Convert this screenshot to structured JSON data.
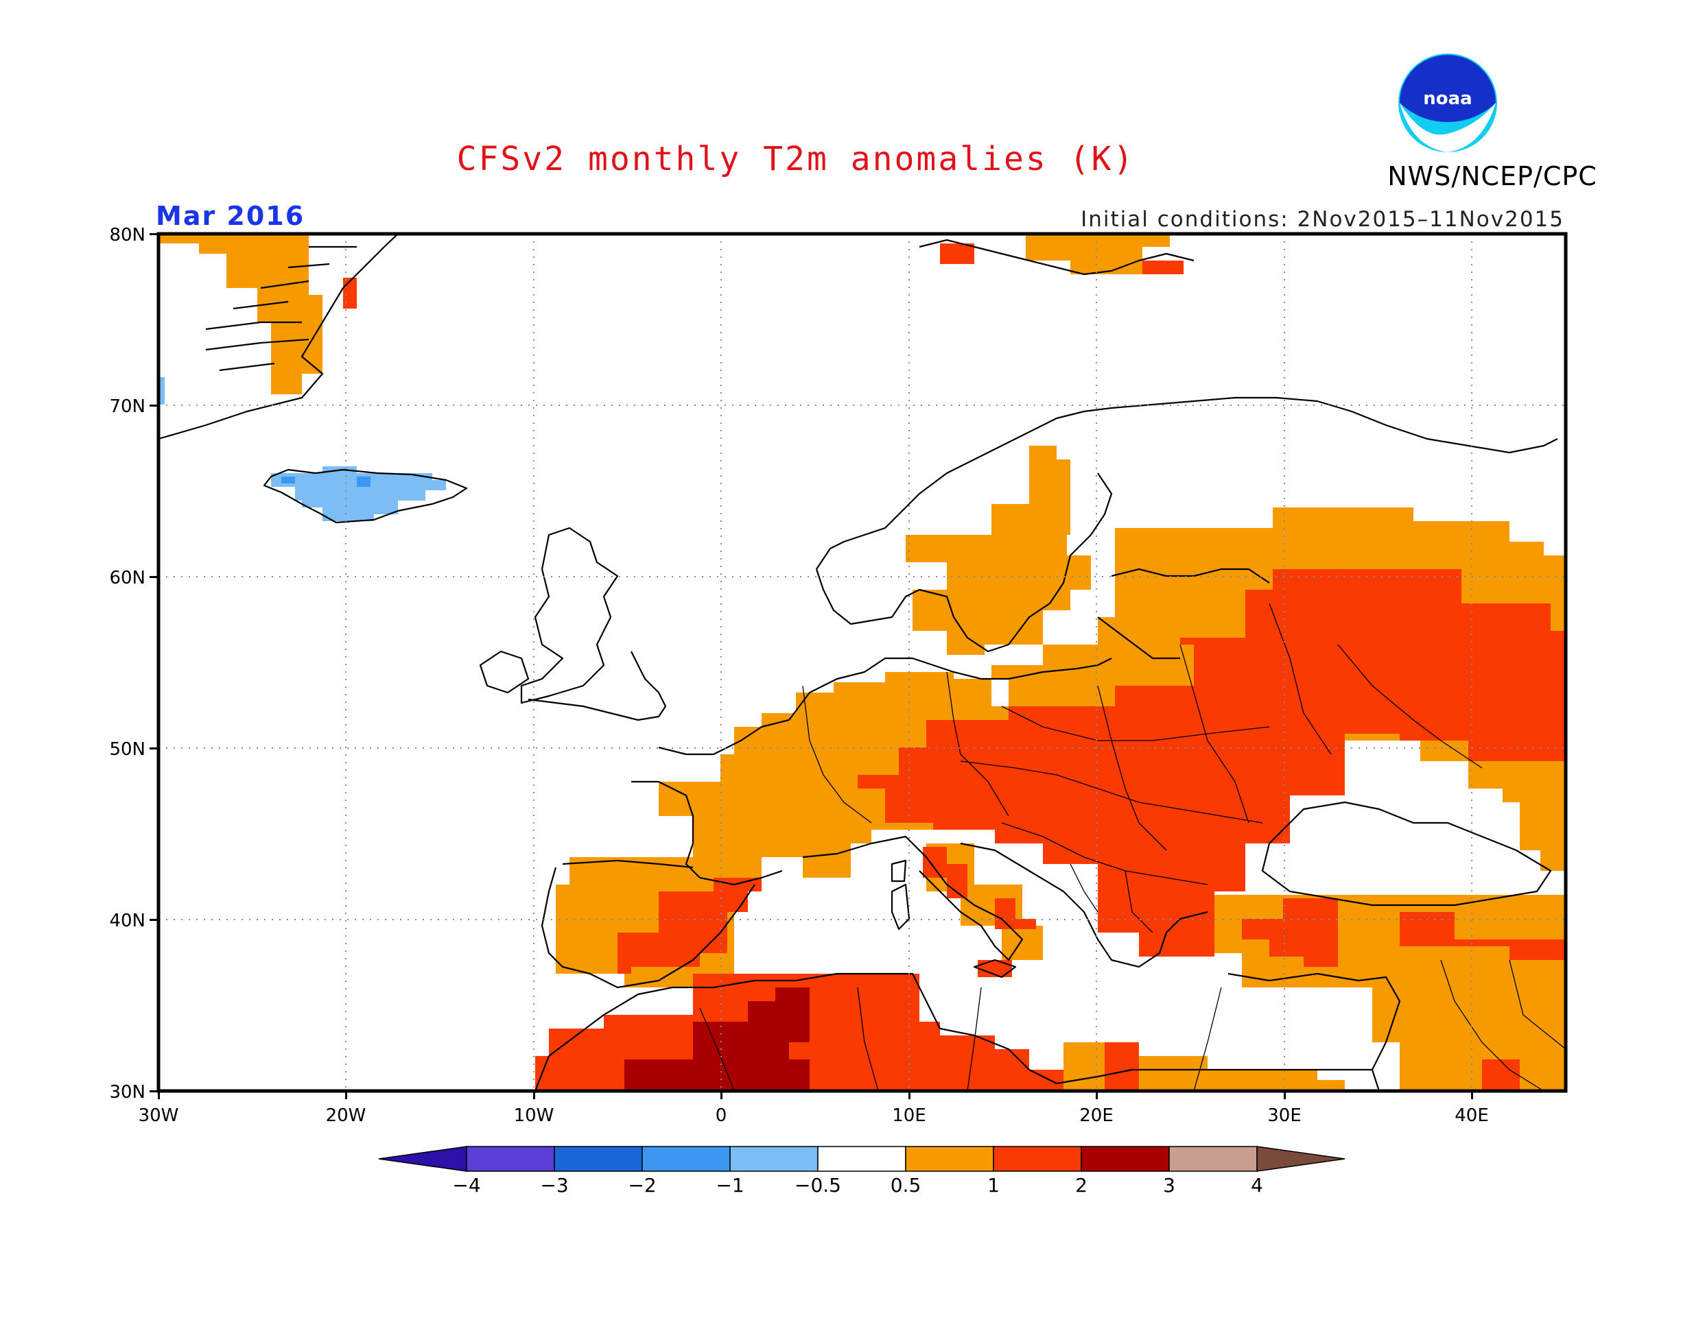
{
  "title": "CFSv2 monthly T2m anomalies (K)",
  "month": "Mar 2016",
  "initial_conditions": "Initial conditions: 2Nov2015–11Nov2015",
  "agency": "NWS/NCEP/CPC",
  "logo_text": "noaa",
  "colors": {
    "title": "#e0131a",
    "month": "#1a35e6",
    "frame": "#000000",
    "grid": "#8a8a8a"
  },
  "map": {
    "projection": "equirectangular",
    "lon_range": [
      -30,
      45
    ],
    "lat_range": [
      30,
      80
    ],
    "lat_labels": [
      "80N",
      "70N",
      "60N",
      "50N",
      "40N",
      "30N"
    ],
    "lon_labels": [
      "30W",
      "20W",
      "10W",
      "0",
      "10E",
      "20E",
      "30E",
      "40E"
    ]
  },
  "colorbar": {
    "tick_labels": [
      "−4",
      "−3",
      "−2",
      "−1",
      "−0.5",
      "0.5",
      "1",
      "2",
      "3",
      "4"
    ],
    "bins": [
      {
        "range": "< -4",
        "color": "#2c10a8"
      },
      {
        "range": "-4 to -3",
        "color": "#5a3fd6"
      },
      {
        "range": "-3 to -2",
        "color": "#1a66d8"
      },
      {
        "range": "-2 to -1",
        "color": "#3d97f0"
      },
      {
        "range": "-1 to -0.5",
        "color": "#7dbdf5"
      },
      {
        "range": "-0.5 to 0.5",
        "color": "#ffffff"
      },
      {
        "range": "0.5 to 1",
        "color": "#f79a00"
      },
      {
        "range": "1 to 2",
        "color": "#fa3a00"
      },
      {
        "range": "2 to 3",
        "color": "#a80000"
      },
      {
        "range": "3 to 4",
        "color": "#c79e90"
      },
      {
        "range": "> 4",
        "color": "#7a4a3a"
      }
    ]
  }
}
